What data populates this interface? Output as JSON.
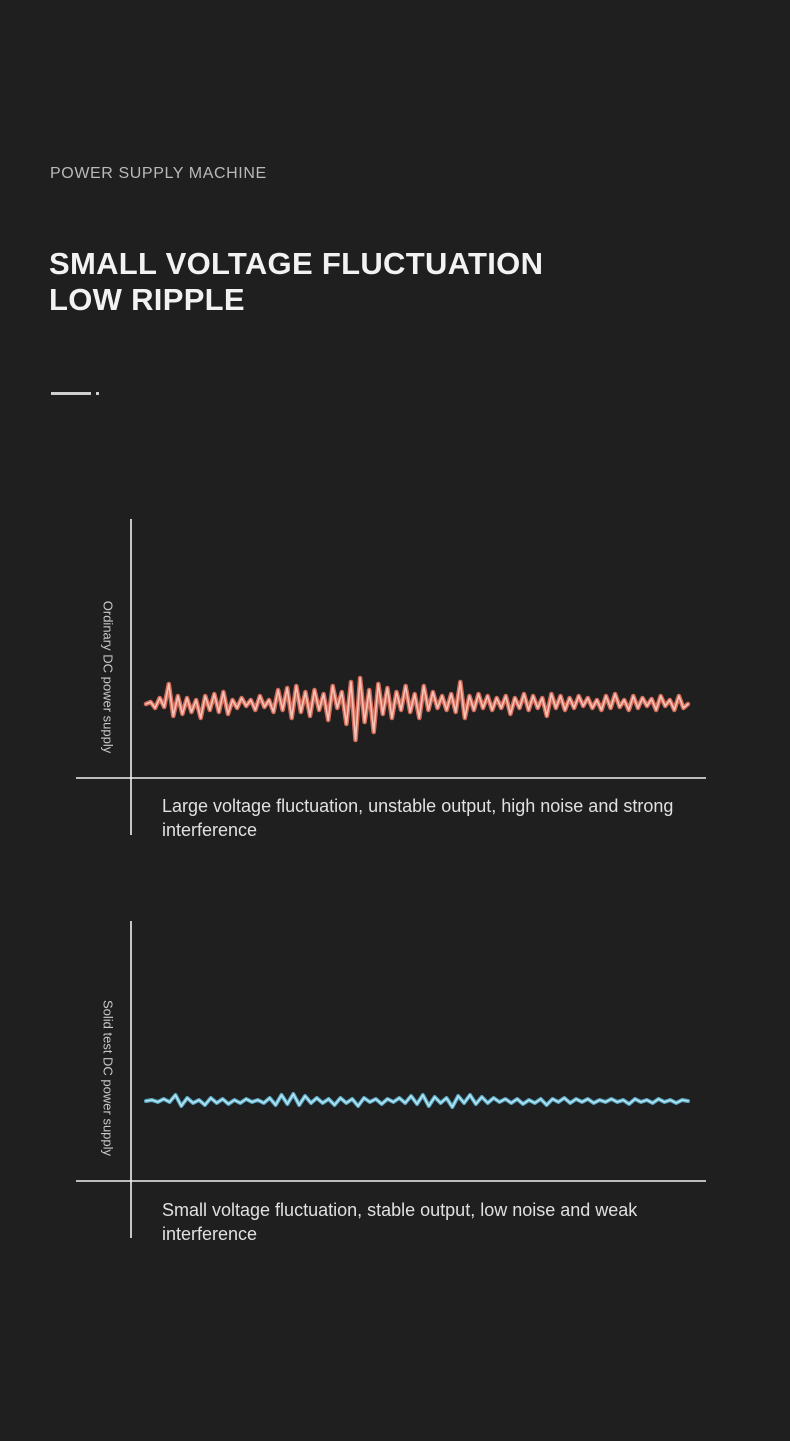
{
  "header": {
    "eyebrow": "POWER SUPPLY MACHINE",
    "headline_line1": "SMALL VOLTAGE FLUCTUATION",
    "headline_line2": "LOW RIPPLE"
  },
  "chart_data": [
    {
      "type": "line",
      "ylabel": "Ordinary DC power supply",
      "caption": "Large voltage fluctuation, unstable output, high noise and strong interference",
      "color": "#e8735f",
      "glow": "#f7c3b6",
      "ylim": [
        -45,
        45
      ],
      "series": [
        {
          "values": [
            0,
            2,
            -4,
            6,
            -3,
            20,
            -12,
            8,
            -10,
            6,
            -8,
            4,
            -14,
            8,
            -6,
            10,
            -8,
            12,
            -10,
            4,
            -4,
            6,
            -2,
            4,
            -6,
            8,
            -3,
            4,
            -8,
            14,
            -6,
            16,
            -14,
            18,
            -8,
            12,
            -12,
            14,
            -6,
            10,
            -16,
            18,
            -4,
            12,
            -20,
            22,
            -36,
            26,
            -18,
            14,
            -28,
            20,
            -10,
            16,
            -14,
            12,
            -6,
            18,
            -8,
            10,
            -14,
            18,
            -6,
            12,
            -4,
            8,
            -6,
            10,
            -8,
            22,
            -14,
            8,
            -6,
            10,
            -4,
            8,
            -6,
            6,
            -4,
            8,
            -10,
            6,
            -4,
            10,
            -6,
            8,
            -4,
            6,
            -12,
            10,
            -4,
            8,
            -6,
            6,
            -4,
            8,
            -2,
            6,
            -4,
            4,
            -6,
            8,
            -4,
            10,
            -3,
            4,
            -6,
            8,
            -4,
            6,
            -2,
            5,
            -6,
            8,
            -2,
            4,
            -6,
            8,
            -4,
            0
          ]
        }
      ]
    },
    {
      "type": "line",
      "ylabel": "Solid test DC power supply",
      "caption": "Small voltage fluctuation, stable output, low noise and weak interference",
      "color": "#5fb7d6",
      "glow": "#b7e4f2",
      "ylim": [
        -45,
        45
      ],
      "series": [
        {
          "values": [
            0,
            1,
            -1,
            2,
            -1,
            6,
            -5,
            3,
            -2,
            1,
            -4,
            3,
            -2,
            2,
            -3,
            1,
            -2,
            2,
            -1,
            1,
            -2,
            3,
            -4,
            6,
            -3,
            7,
            -4,
            5,
            -2,
            3,
            -2,
            2,
            -4,
            3,
            -2,
            2,
            -5,
            3,
            -1,
            2,
            -3,
            2,
            -1,
            3,
            -2,
            5,
            -3,
            6,
            -5,
            4,
            -2,
            3,
            -6,
            5,
            -2,
            6,
            -3,
            4,
            -2,
            3,
            -1,
            2,
            -2,
            2,
            -3,
            1,
            -2,
            2,
            -4,
            2,
            -1,
            3,
            -2,
            2,
            -1,
            2,
            -2,
            1,
            -1,
            2,
            -1,
            1,
            -3,
            2,
            -1,
            1,
            -2,
            2,
            -1,
            1,
            -2,
            1,
            0
          ]
        }
      ]
    }
  ]
}
